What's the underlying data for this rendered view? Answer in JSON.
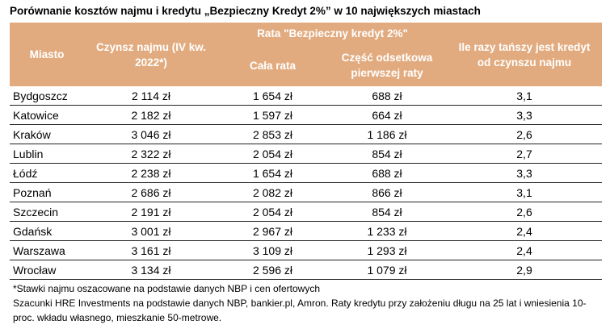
{
  "title": "Porównanie kosztów najmu i kredytu „Bezpieczny Kredyt 2%” w 10 największych miastach",
  "table": {
    "header": {
      "city": "Miasto",
      "rent": "Czynsz najmu (IV kw. 2022*)",
      "installment_group": "Rata \"Bezpieczny kredyt 2%\"",
      "installment": "Cała rata",
      "interest": "Część odsetkowa pierwszej raty",
      "ratio": "Ile razy tańszy jest kredyt od czynszu najmu"
    },
    "rows": [
      [
        "Bydgoszcz",
        "2 114 zł",
        "1 654 zł",
        "688 zł",
        "3,1"
      ],
      [
        "Katowice",
        "2 182 zł",
        "1 597 zł",
        "664 zł",
        "3,3"
      ],
      [
        "Kraków",
        "3 046 zł",
        "2 853 zł",
        "1 186 zł",
        "2,6"
      ],
      [
        "Lublin",
        "2 322 zł",
        "2 054 zł",
        "854 zł",
        "2,7"
      ],
      [
        "Łódź",
        "2 238 zł",
        "1 654 zł",
        "688 zł",
        "3,3"
      ],
      [
        "Poznań",
        "2 686 zł",
        "2 082 zł",
        "866 zł",
        "3,1"
      ],
      [
        "Szczecin",
        "2 191 zł",
        "2 054 zł",
        "854 zł",
        "2,6"
      ],
      [
        "Gdańsk",
        "3 001 zł",
        "2 967 zł",
        "1 233 zł",
        "2,4"
      ],
      [
        "Warszawa",
        "3 161 zł",
        "3 109 zł",
        "1 293 zł",
        "2,4"
      ],
      [
        "Wrocław",
        "3 134 zł",
        "2 596 zł",
        "1 079 zł",
        "2,9"
      ]
    ]
  },
  "footnotes": [
    "*Stawki najmu oszacowane na podstawie danych NBP i cen ofertowych",
    "Szacunki HRE Investments na podstawie danych NBP, bankier.pl, Amron. Raty kredytu przy założeniu długu na 25 lat i wniesienia 10-proc. wkładu własnego, mieszkanie 50-metrowe."
  ]
}
